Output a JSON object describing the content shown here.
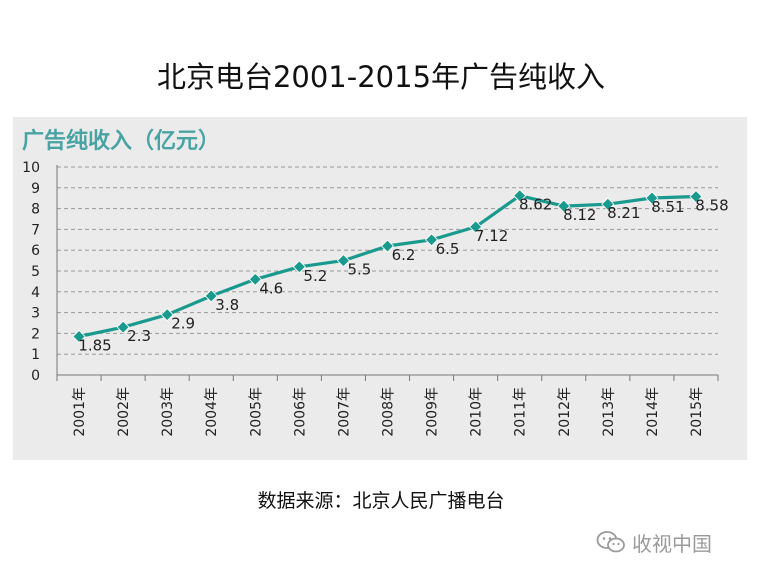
{
  "page": {
    "title": "北京电台2001-2015年广告纯收入",
    "source": "数据来源：北京人民广播电台",
    "watermark": "收视中国"
  },
  "colors": {
    "line": "#1a9a8e",
    "marker": "#1a9a8e",
    "title_accent": "#4aa3a3",
    "panel_bg": "#ebebeb",
    "grid": "#9a9a9a"
  },
  "icons": {
    "watermark": "wechat-logo-icon"
  },
  "chart_data": {
    "type": "line",
    "title": "广告纯收入（亿元）",
    "categories": [
      "2001年",
      "2002年",
      "2003年",
      "2004年",
      "2005年",
      "2006年",
      "2007年",
      "2008年",
      "2009年",
      "2010年",
      "2011年",
      "2012年",
      "2013年",
      "2014年",
      "2015年"
    ],
    "series": [
      {
        "name": "广告纯收入",
        "values": [
          1.85,
          2.3,
          2.9,
          3.8,
          4.6,
          5.2,
          5.5,
          6.2,
          6.5,
          7.12,
          8.62,
          8.12,
          8.21,
          8.51,
          8.58
        ]
      }
    ],
    "data_labels": [
      "1.85",
      "2.3",
      "2.9",
      "3.8",
      "4.6",
      "5.2",
      "5.5",
      "6.2",
      "6.5",
      "7.12",
      "8.62",
      "8.12",
      "8.21",
      "8.51",
      "8.58"
    ],
    "ylim": [
      0,
      10
    ],
    "yticks": [
      "0",
      "1",
      "2",
      "3",
      "4",
      "5",
      "6",
      "7",
      "8",
      "9",
      "10"
    ],
    "grid": true,
    "xlabel": "",
    "ylabel": ""
  }
}
